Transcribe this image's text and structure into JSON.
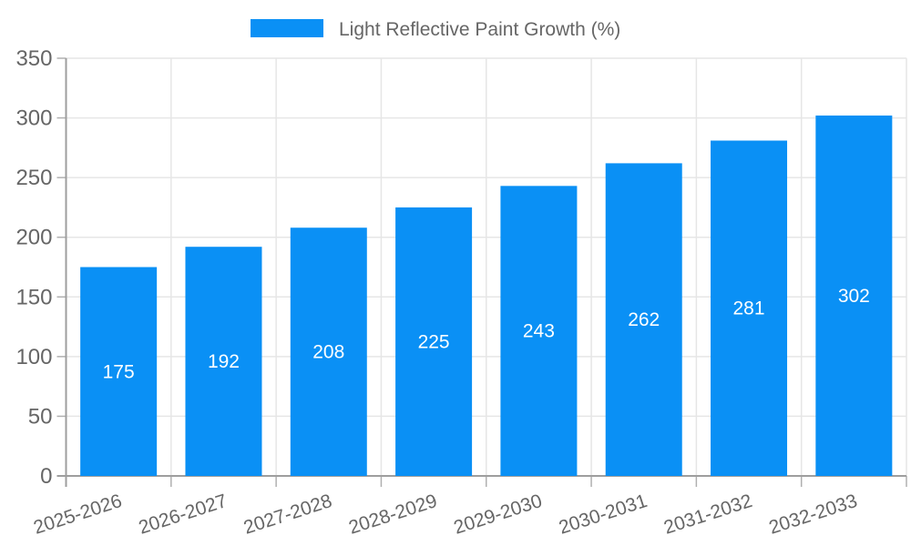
{
  "legend": {
    "label": "Light Reflective Paint Growth (%)",
    "position": "top-center"
  },
  "chart_data": {
    "type": "bar",
    "title": "Light Reflective Paint Growth (%)",
    "categories": [
      "2025-2026",
      "2026-2027",
      "2027-2028",
      "2028-2029",
      "2029-2030",
      "2030-2031",
      "2031-2032",
      "2032-2033"
    ],
    "values": [
      175,
      192,
      208,
      225,
      243,
      262,
      281,
      302
    ],
    "bar_labels": [
      "175",
      "192",
      "208",
      "225",
      "243",
      "262",
      "281",
      "302"
    ],
    "xlabel": "",
    "ylabel": "",
    "ylim": [
      0,
      350
    ],
    "yticks": [
      0,
      50,
      100,
      150,
      200,
      250,
      300,
      350
    ],
    "grid": true,
    "legend_position": "top-center",
    "x_label_rotation_deg": -18
  },
  "colors": {
    "bar": "#0a90f5",
    "grid": "#e6e6e6",
    "axis": "#9e9e9e",
    "tick": "#b0b0b0",
    "label": "#666666",
    "bar_label": "#ffffff",
    "background": "#ffffff"
  }
}
